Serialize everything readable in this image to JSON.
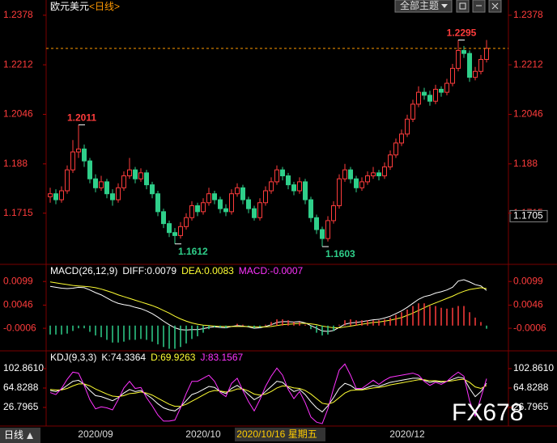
{
  "header": {
    "symbol": "欧元美元",
    "period": "<日线>"
  },
  "toolbar": {
    "theme_button": "全部主题"
  },
  "footer": {
    "period_button": "日线"
  },
  "watermark": "FX678",
  "chart_data": [
    {
      "type": "candlestick",
      "categories": [
        null,
        null,
        null,
        null,
        null,
        null,
        null,
        null,
        "2020/09",
        null,
        null,
        null,
        null,
        null,
        null,
        null,
        null,
        null,
        null,
        null,
        null,
        null,
        null,
        null,
        null,
        null,
        null,
        "2020/10",
        null,
        null,
        null,
        null,
        null,
        null,
        null,
        null,
        null,
        null,
        null,
        null,
        "2020/10/16 星期五",
        null,
        null,
        null,
        null,
        null,
        null,
        null,
        null,
        null,
        null,
        null,
        null,
        null,
        null,
        null,
        null,
        null,
        null,
        null,
        null,
        null,
        null,
        "2020/12",
        null,
        null,
        null,
        null,
        null,
        null,
        null,
        null,
        null,
        null,
        null,
        null,
        null,
        null
      ],
      "open": [
        1.177,
        1.178,
        1.176,
        1.179,
        1.186,
        1.192,
        1.193,
        1.189,
        1.183,
        1.18,
        1.182,
        1.178,
        1.176,
        1.18,
        1.184,
        1.186,
        1.183,
        1.185,
        1.181,
        1.178,
        1.172,
        1.168,
        1.165,
        1.164,
        1.167,
        1.17,
        1.174,
        1.172,
        1.175,
        1.178,
        1.176,
        1.173,
        1.172,
        1.178,
        1.18,
        1.176,
        1.173,
        1.17,
        1.175,
        1.179,
        1.182,
        1.186,
        1.184,
        1.181,
        1.179,
        1.182,
        1.176,
        1.17,
        1.166,
        1.163,
        1.169,
        1.174,
        1.183,
        1.186,
        1.183,
        1.18,
        1.182,
        1.184,
        1.185,
        1.184,
        1.187,
        1.191,
        1.195,
        1.198,
        1.203,
        1.208,
        1.212,
        1.211,
        1.209,
        1.213,
        1.212,
        1.215,
        1.22,
        1.226,
        1.225,
        1.217,
        1.219,
        1.223
      ],
      "high": [
        1.18,
        1.1795,
        1.1805,
        1.1875,
        1.196,
        1.2011,
        1.1945,
        1.19,
        1.1845,
        1.184,
        1.183,
        1.1795,
        1.1815,
        1.1855,
        1.19,
        1.187,
        1.1865,
        1.186,
        1.182,
        1.179,
        1.173,
        1.169,
        1.1665,
        1.1685,
        1.1715,
        1.1755,
        1.175,
        1.1765,
        1.18,
        1.179,
        1.177,
        1.1745,
        1.1795,
        1.1815,
        1.181,
        1.177,
        1.174,
        1.1765,
        1.1805,
        1.1835,
        1.1875,
        1.187,
        1.185,
        1.182,
        1.1835,
        1.183,
        1.177,
        1.171,
        1.167,
        1.1705,
        1.1755,
        1.1845,
        1.188,
        1.187,
        1.184,
        1.1835,
        1.1855,
        1.187,
        1.186,
        1.1885,
        1.1925,
        1.1965,
        1.1995,
        1.2045,
        1.2095,
        1.214,
        1.2135,
        1.2125,
        1.2145,
        1.214,
        1.2165,
        1.2215,
        1.2295,
        1.2275,
        1.226,
        1.2205,
        1.2245,
        1.2295
      ],
      "low": [
        1.175,
        1.1745,
        1.175,
        1.178,
        1.185,
        1.19,
        1.187,
        1.1815,
        1.1785,
        1.179,
        1.1765,
        1.174,
        1.175,
        1.179,
        1.183,
        1.1815,
        1.182,
        1.1795,
        1.1765,
        1.1705,
        1.1665,
        1.1635,
        1.1612,
        1.163,
        1.166,
        1.169,
        1.1705,
        1.171,
        1.174,
        1.1745,
        1.1715,
        1.1705,
        1.171,
        1.177,
        1.1745,
        1.1715,
        1.169,
        1.169,
        1.174,
        1.178,
        1.181,
        1.1825,
        1.1795,
        1.1775,
        1.178,
        1.1745,
        1.1685,
        1.1645,
        1.1603,
        1.162,
        1.168,
        1.173,
        1.182,
        1.1815,
        1.1785,
        1.179,
        1.181,
        1.183,
        1.1825,
        1.183,
        1.186,
        1.19,
        1.194,
        1.197,
        1.202,
        1.207,
        1.2095,
        1.2075,
        1.208,
        1.2105,
        1.211,
        1.214,
        1.219,
        1.2235,
        1.2155,
        1.216,
        1.218,
        1.222
      ],
      "close": [
        1.178,
        1.176,
        1.179,
        1.186,
        1.192,
        1.193,
        1.189,
        1.183,
        1.18,
        1.182,
        1.178,
        1.176,
        1.18,
        1.184,
        1.186,
        1.183,
        1.185,
        1.181,
        1.178,
        1.172,
        1.168,
        1.165,
        1.164,
        1.167,
        1.17,
        1.174,
        1.172,
        1.175,
        1.178,
        1.176,
        1.173,
        1.172,
        1.178,
        1.18,
        1.176,
        1.173,
        1.17,
        1.175,
        1.179,
        1.182,
        1.186,
        1.184,
        1.181,
        1.179,
        1.182,
        1.176,
        1.17,
        1.166,
        1.163,
        1.169,
        1.174,
        1.183,
        1.186,
        1.183,
        1.18,
        1.182,
        1.184,
        1.185,
        1.184,
        1.187,
        1.191,
        1.195,
        1.198,
        1.203,
        1.208,
        1.212,
        1.211,
        1.209,
        1.213,
        1.212,
        1.215,
        1.22,
        1.226,
        1.225,
        1.217,
        1.219,
        1.223,
        1.2267
      ],
      "up_color": "#ff3c3c",
      "down_color": "#2fcf8a",
      "annotations": [
        1.2011,
        1.1612,
        1.1603,
        1.2295
      ],
      "cursor": 1.1705,
      "ylim": [
        1.1549,
        1.2429
      ],
      "yticks": [
        1.2378,
        1.2212,
        1.2046,
        1.188,
        1.1715
      ]
    },
    {
      "type": "macd",
      "title": "MACD(26,12,9)",
      "series": [
        {
          "name": "DIFF:",
          "color": "#ffffff",
          "values": [
            0.0088,
            0.0086,
            0.0084,
            0.0083,
            0.0084,
            0.0086,
            0.0085,
            0.008,
            0.0074,
            0.0069,
            0.0062,
            0.0055,
            0.005,
            0.0047,
            0.0045,
            0.0041,
            0.0038,
            0.0033,
            0.0027,
            0.0019,
            0.001,
            0.0002,
            -0.0005,
            -0.0009,
            -0.001,
            -0.0009,
            -0.0009,
            -0.0007,
            -0.0004,
            -0.0003,
            -0.0004,
            -0.0005,
            -0.0002,
            0.0,
            -0.0001,
            -0.0003,
            -0.0006,
            -0.0005,
            -0.0002,
            0.0002,
            0.0007,
            0.0009,
            0.0009,
            0.0008,
            0.0009,
            0.0006,
            0.0,
            -0.0006,
            -0.0012,
            -0.0013,
            -0.0011,
            -0.0004,
            0.0003,
            0.0006,
            0.0007,
            0.0009,
            0.0011,
            0.0013,
            0.0014,
            0.0017,
            0.0021,
            0.0027,
            0.0033,
            0.0041,
            0.005,
            0.0059,
            0.0065,
            0.0068,
            0.0073,
            0.0076,
            0.008,
            0.0086,
            0.01,
            0.0103,
            0.0098,
            0.0092,
            0.0089,
            0.0079
          ]
        },
        {
          "name": "DEA:",
          "color": "#ffff33",
          "values": [
            0.0098,
            0.0096,
            0.0094,
            0.0092,
            0.009,
            0.0089,
            0.0088,
            0.0087,
            0.0085,
            0.0082,
            0.0078,
            0.0074,
            0.0069,
            0.0065,
            0.0061,
            0.0057,
            0.0053,
            0.0049,
            0.0045,
            0.004,
            0.0034,
            0.0028,
            0.0021,
            0.0015,
            0.001,
            0.0006,
            0.0003,
            0.0001,
            0.0,
            -0.0001,
            -0.0002,
            -0.0002,
            -0.0002,
            -0.0002,
            -0.0002,
            -0.0002,
            -0.0003,
            -0.0003,
            -0.0003,
            -0.0002,
            0.0,
            0.0002,
            0.0003,
            0.0004,
            0.0005,
            0.0005,
            0.0004,
            0.0002,
            -0.0001,
            -0.0003,
            -0.0005,
            -0.0005,
            -0.0003,
            -0.0001,
            0.0001,
            0.0003,
            0.0005,
            0.0007,
            0.0008,
            0.001,
            0.0012,
            0.0015,
            0.0018,
            0.0023,
            0.0028,
            0.0034,
            0.004,
            0.0046,
            0.0051,
            0.0056,
            0.0061,
            0.0066,
            0.0072,
            0.0077,
            0.0081,
            0.0083,
            0.0085,
            0.0083
          ]
        },
        {
          "name": "MACD:",
          "color": "#ff33ff",
          "bar": true,
          "values": [
            -0.002,
            -0.002,
            -0.002,
            -0.0018,
            -0.0012,
            -0.0006,
            -0.0006,
            -0.0014,
            -0.0022,
            -0.0026,
            -0.0032,
            -0.0038,
            -0.0038,
            -0.0036,
            -0.0032,
            -0.0032,
            -0.003,
            -0.0032,
            -0.0036,
            -0.0042,
            -0.0048,
            -0.0052,
            -0.0052,
            -0.0048,
            -0.004,
            -0.003,
            -0.0024,
            -0.0016,
            -0.0008,
            -0.0004,
            -0.0004,
            -0.0006,
            0.0,
            0.0004,
            0.0002,
            -0.0002,
            -0.0006,
            -0.0004,
            0.0002,
            0.0008,
            0.0014,
            0.0014,
            0.0012,
            0.0008,
            0.0008,
            0.0002,
            -0.0008,
            -0.0016,
            -0.0022,
            -0.002,
            -0.0012,
            0.0002,
            0.0012,
            0.0014,
            0.0012,
            0.0012,
            0.0012,
            0.0012,
            0.0012,
            0.0014,
            0.0018,
            0.0024,
            0.003,
            0.0036,
            0.0044,
            0.005,
            0.005,
            0.0044,
            0.0044,
            0.004,
            0.0038,
            0.004,
            0.0044,
            0.0044,
            0.003,
            0.0018,
            0.0008,
            -0.0007
          ]
        }
      ],
      "up_color": "#ff3c3c",
      "down_color": "#2fcf8a",
      "ylim": [
        -0.0053,
        0.0132
      ],
      "yticks": [
        0.0099,
        0.0046,
        -0.0006
      ]
    },
    {
      "type": "line",
      "title": "KDJ(9,3,3)",
      "series": [
        {
          "name": "K:",
          "color": "#ffffff",
          "values": [
            60,
            58,
            62,
            70,
            78,
            80,
            72,
            60,
            50,
            48,
            44,
            40,
            46,
            55,
            62,
            58,
            60,
            52,
            44,
            34,
            26,
            22,
            20,
            28,
            40,
            52,
            56,
            62,
            68,
            66,
            58,
            54,
            64,
            70,
            62,
            52,
            42,
            48,
            58,
            68,
            78,
            76,
            66,
            58,
            62,
            52,
            38,
            26,
            18,
            30,
            46,
            64,
            74,
            70,
            62,
            62,
            66,
            70,
            68,
            72,
            76,
            78,
            80,
            82,
            84,
            84,
            80,
            76,
            78,
            76,
            78,
            82,
            86,
            84,
            64,
            48,
            58,
            74.3364
          ]
        },
        {
          "name": "D:",
          "color": "#ffff33",
          "values": [
            62,
            61,
            61,
            64,
            69,
            73,
            73,
            69,
            63,
            58,
            53,
            49,
            48,
            50,
            54,
            55,
            57,
            55,
            51,
            45,
            39,
            33,
            29,
            29,
            33,
            39,
            45,
            51,
            57,
            60,
            59,
            57,
            59,
            63,
            63,
            59,
            53,
            51,
            53,
            58,
            65,
            69,
            68,
            65,
            64,
            60,
            53,
            44,
            35,
            33,
            37,
            46,
            55,
            60,
            61,
            61,
            63,
            65,
            66,
            68,
            71,
            73,
            75,
            77,
            79,
            81,
            81,
            79,
            79,
            78,
            78,
            79,
            81,
            82,
            76,
            67,
            64,
            69.9263
          ]
        },
        {
          "name": "J:",
          "color": "#ff33ff",
          "values": [
            56,
            52,
            64,
            82,
            96,
            94,
            70,
            42,
            24,
            28,
            26,
            22,
            42,
            65,
            78,
            64,
            66,
            46,
            30,
            12,
            0,
            0,
            2,
            26,
            54,
            78,
            78,
            84,
            90,
            78,
            56,
            48,
            74,
            84,
            60,
            38,
            20,
            42,
            68,
            88,
            104,
            90,
            62,
            44,
            58,
            36,
            8,
            -2,
            -5,
            24,
            64,
            100,
            112,
            90,
            64,
            64,
            72,
            80,
            72,
            80,
            86,
            88,
            90,
            92,
            94,
            90,
            78,
            70,
            76,
            72,
            78,
            88,
            96,
            88,
            40,
            10,
            46,
            83.1567
          ]
        }
      ],
      "ylim": [
        -6.48,
        132.97
      ],
      "yticks": [
        {
          "value": 102.861,
          "label": "102.8610"
        },
        64.8288,
        26.7965
      ]
    }
  ]
}
